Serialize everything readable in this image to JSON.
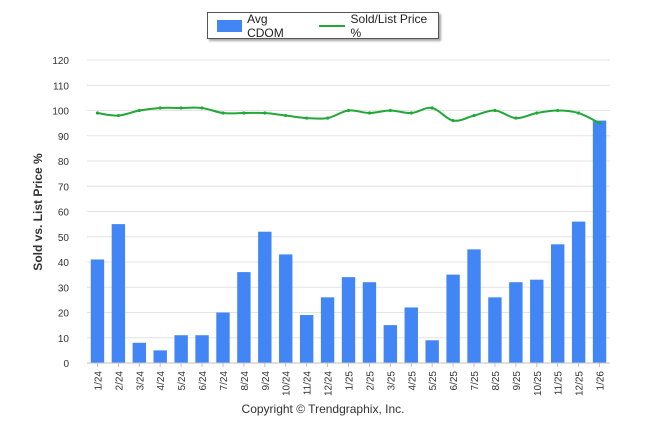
{
  "chart_data": {
    "type": "bar",
    "title": "",
    "xlabel": "",
    "ylabel": "Sold vs. List Price %",
    "ylim": [
      0,
      120
    ],
    "yticks": [
      0,
      10,
      20,
      30,
      40,
      50,
      60,
      70,
      80,
      90,
      100,
      110,
      120
    ],
    "grid": true,
    "legend_position": "top-center",
    "categories": [
      "1/24",
      "2/24",
      "3/24",
      "4/24",
      "5/24",
      "6/24",
      "7/24",
      "8/24",
      "9/24",
      "10/24",
      "11/24",
      "12/24",
      "1/25",
      "2/25",
      "3/25",
      "4/25",
      "5/25",
      "6/25",
      "7/25",
      "8/25",
      "9/25",
      "10/25",
      "11/25",
      "12/25",
      "1/26"
    ],
    "series": [
      {
        "name": "Avg CDOM",
        "type": "bar",
        "color": "#4285f4",
        "values": [
          41,
          55,
          8,
          5,
          11,
          11,
          20,
          36,
          52,
          43,
          19,
          26,
          34,
          32,
          15,
          22,
          9,
          35,
          45,
          26,
          32,
          33,
          47,
          56,
          96
        ]
      },
      {
        "name": "Sold/List Price %",
        "type": "line",
        "color": "#22a839",
        "values": [
          99,
          98,
          100,
          101,
          101,
          101,
          99,
          99,
          99,
          98,
          97,
          97,
          100,
          99,
          100,
          99,
          101,
          96,
          98,
          100,
          97,
          99,
          100,
          99,
          95
        ]
      }
    ]
  },
  "footer": {
    "copyright": "Copyright © Trendgraphix, Inc."
  }
}
